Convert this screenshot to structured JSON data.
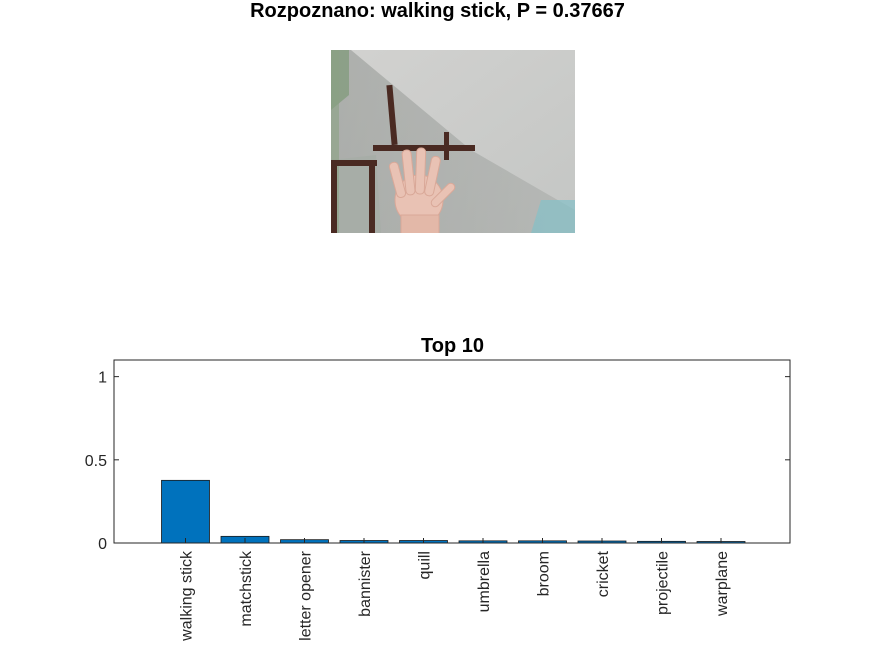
{
  "image_title": "Rozpoznano: walking stick, P = 0.37667",
  "photo": {
    "subject": "webcam-photo-of-raised-hand"
  },
  "chart_data": {
    "type": "bar",
    "title": "Top 10",
    "categories": [
      "walking stick",
      "matchstick",
      "letter opener",
      "bannister",
      "quill",
      "umbrella",
      "broom",
      "cricket",
      "projectile",
      "warplane"
    ],
    "values": [
      0.37667,
      0.04,
      0.02,
      0.015,
      0.015,
      0.013,
      0.013,
      0.012,
      0.01,
      0.009
    ],
    "ylim": [
      0,
      1.1
    ],
    "yticks": [
      0,
      0.5,
      1
    ],
    "ytick_labels": [
      "0",
      "0.5",
      "1"
    ],
    "bar_color": "#0072BD",
    "grid": false
  }
}
